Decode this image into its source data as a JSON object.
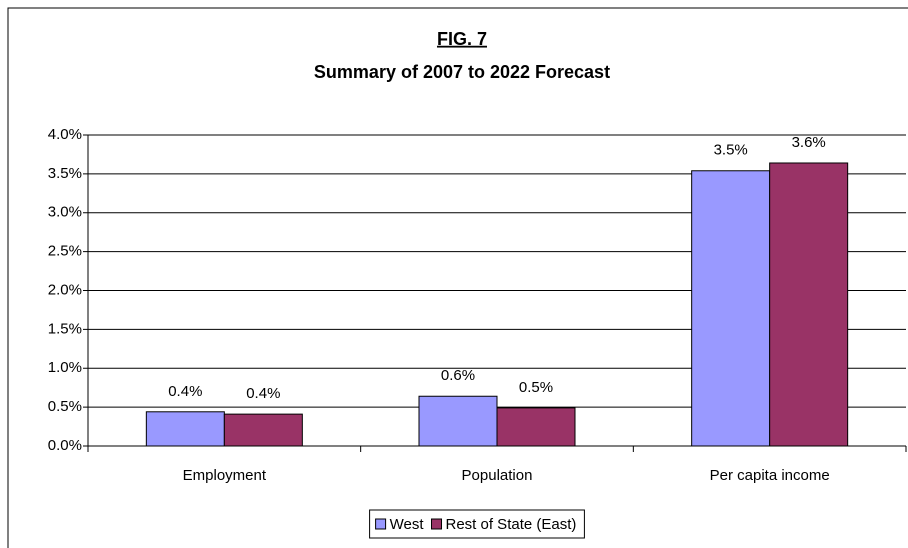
{
  "chart_data": {
    "type": "bar",
    "title": "FIG. 7",
    "subtitle": "Summary of 2007 to 2022 Forecast",
    "categories": [
      "Employment",
      "Population",
      "Per capita income"
    ],
    "series": [
      {
        "name": "West",
        "color": "#9999ff",
        "values": [
          0.44,
          0.64,
          3.54
        ],
        "value_labels": [
          "0.4%",
          "0.6%",
          "3.5%"
        ]
      },
      {
        "name": "Rest of State (East)",
        "color": "#993366",
        "values": [
          0.41,
          0.49,
          3.64
        ],
        "value_labels": [
          "0.4%",
          "0.5%",
          "3.6%"
        ]
      }
    ],
    "ylim": [
      0,
      4
    ],
    "yticks": [
      {
        "value": 0,
        "label": "0.0%"
      },
      {
        "value": 0.5,
        "label": "0.5%"
      },
      {
        "value": 1,
        "label": "1.0%"
      },
      {
        "value": 1.5,
        "label": "1.5%"
      },
      {
        "value": 2,
        "label": "2.0%"
      },
      {
        "value": 2.5,
        "label": "2.5%"
      },
      {
        "value": 3,
        "label": "3.0%"
      },
      {
        "value": 3.5,
        "label": "3.5%"
      },
      {
        "value": 4,
        "label": "4.0%"
      }
    ],
    "grid": true,
    "legend": "bottom"
  }
}
